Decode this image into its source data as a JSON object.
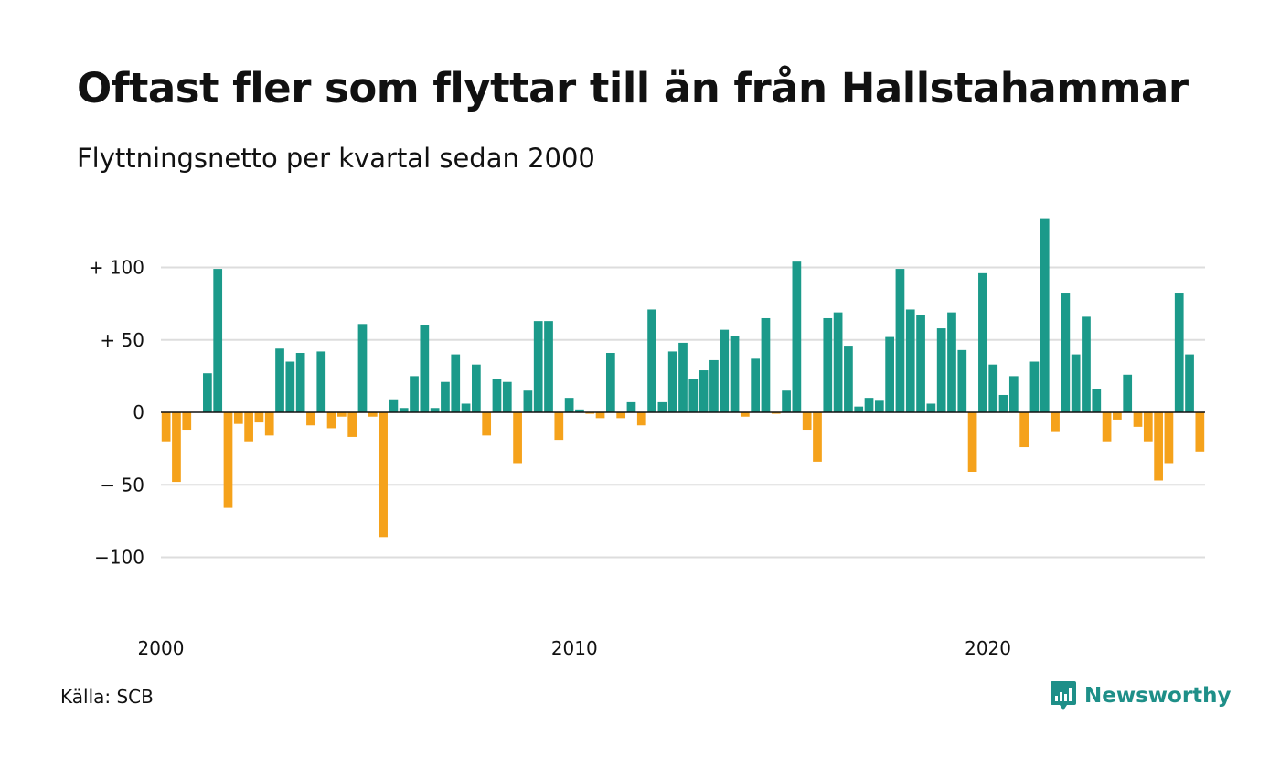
{
  "title": "Oftast fler som flyttar till än från Hallstahammar",
  "subtitle": "Flyttningsnetto per kvartal sedan 2000",
  "source": "Källa: SCB",
  "brand": {
    "name": "Newsworthy",
    "icon": "newsworthy-logo-icon",
    "color": "#1e8f88"
  },
  "colors": {
    "positive": "#1b9a8a",
    "negative": "#f5a21b",
    "grid": "#dddddd"
  },
  "chart_data": {
    "type": "bar",
    "title": "Oftast fler som flyttar till än från Hallstahammar",
    "subtitle": "Flyttningsnetto per kvartal sedan 2000",
    "xlabel": "",
    "ylabel": "",
    "ylim": [
      -140,
      140
    ],
    "grid": true,
    "y_ticks": [
      {
        "value": 100,
        "label": "+ 100"
      },
      {
        "value": 50,
        "label": "+  50"
      },
      {
        "value": 0,
        "label": "0"
      },
      {
        "value": -50,
        "label": "− 50"
      },
      {
        "value": -100,
        "label": "−100"
      }
    ],
    "x_ticks": [
      {
        "value": 2000,
        "label": "2000"
      },
      {
        "value": 2010,
        "label": "2010"
      },
      {
        "value": 2020,
        "label": "2020"
      }
    ],
    "start": {
      "year": 2000,
      "quarter": 1
    },
    "values": [
      -20,
      -48,
      -12,
      0,
      27,
      99,
      -66,
      -8,
      -20,
      -7,
      -16,
      44,
      35,
      41,
      -9,
      42,
      -11,
      -3,
      -17,
      61,
      -3,
      -86,
      9,
      3,
      25,
      60,
      3,
      21,
      40,
      6,
      33,
      -16,
      23,
      21,
      -35,
      15,
      63,
      63,
      -19,
      10,
      2,
      -1,
      -4,
      41,
      -4,
      7,
      -9,
      71,
      7,
      42,
      48,
      23,
      29,
      36,
      57,
      53,
      -3,
      37,
      65,
      -1,
      15,
      104,
      -12,
      -34,
      65,
      69,
      46,
      4,
      10,
      8,
      52,
      99,
      71,
      67,
      6,
      58,
      69,
      43,
      -41,
      96,
      33,
      12,
      25,
      -24,
      35,
      134,
      -13,
      82,
      40,
      66,
      16,
      -20,
      -5,
      26,
      -10,
      -20,
      -47,
      -35,
      82,
      40,
      -27
    ]
  }
}
